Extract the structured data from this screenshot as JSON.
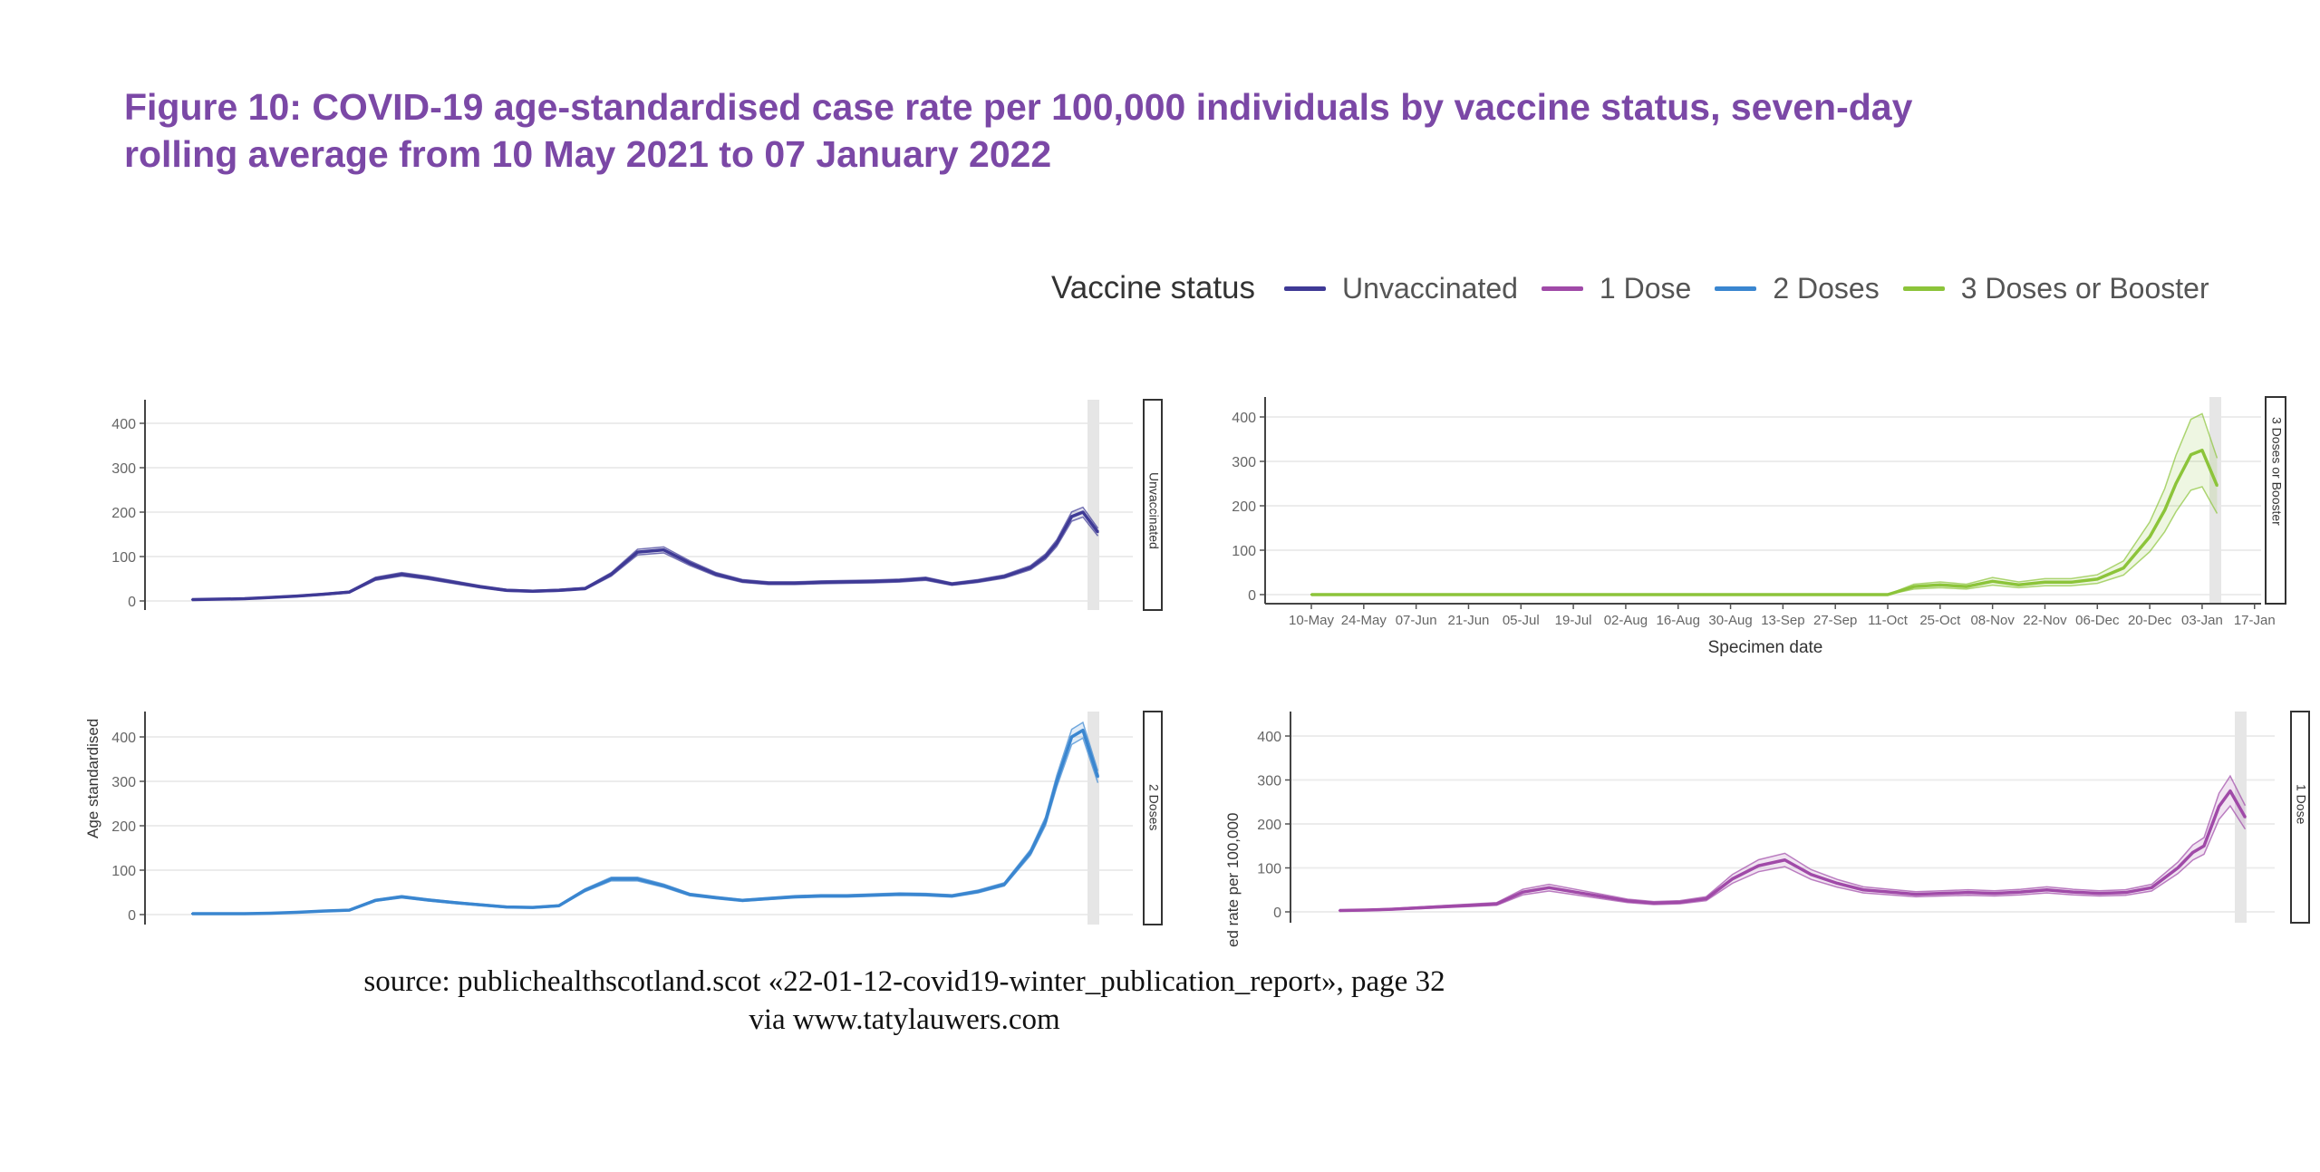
{
  "title": "Figure 10: COVID-19 age-standardised case rate per 100,000 individuals by vaccine status, seven-day rolling average from 10 May 2021 to 07 January 2022",
  "legend": {
    "title": "Vaccine status",
    "items": [
      {
        "label": "Unvaccinated",
        "color": "#3f3a96"
      },
      {
        "label": "1 Dose",
        "color": "#a04aa8"
      },
      {
        "label": "2 Doses",
        "color": "#3a86d0"
      },
      {
        "label": "3 Doses or Booster",
        "color": "#8cc43a"
      }
    ]
  },
  "source": {
    "line1": "source: publichealthscotland.scot «22-01-12-covid19-winter_publication_report», page 32",
    "line2": "via www.tatylauwers.com"
  },
  "chart_data": {
    "type": "line",
    "title": "Figure 10: COVID-19 age-standardised case rate per 100,000 individuals by vaccine status, seven-day rolling average from 10 May 2021 to 07 January 2022",
    "xlabel": "Specimen date",
    "ylabel_fragments": [
      "Age standardised",
      "ed rate per 100,000"
    ],
    "x_unit": "days since 10-May-2021",
    "x_ticks": [
      "10-May",
      "24-May",
      "07-Jun",
      "21-Jun",
      "05-Jul",
      "19-Jul",
      "02-Aug",
      "16-Aug",
      "30-Aug",
      "13-Sep",
      "27-Sep",
      "11-Oct",
      "25-Oct",
      "08-Nov",
      "22-Nov",
      "06-Dec",
      "20-Dec",
      "03-Jan",
      "17-Jan"
    ],
    "y_ticks": [
      0,
      100,
      200,
      300,
      400
    ],
    "ylim": [
      0,
      450
    ],
    "grid": true,
    "legend_position": "top-right",
    "x": [
      0,
      7,
      14,
      21,
      28,
      35,
      42,
      49,
      56,
      63,
      70,
      77,
      84,
      91,
      98,
      105,
      112,
      119,
      126,
      133,
      140,
      147,
      154,
      161,
      168,
      175,
      182,
      189,
      196,
      203,
      210,
      217,
      224,
      228,
      231,
      235,
      238,
      242
    ],
    "panels": [
      {
        "strip": "Unvaccinated",
        "series": "Unvaccinated",
        "color": "#3f3a96",
        "ci_pct": 5,
        "values": [
          3,
          4,
          5,
          8,
          11,
          15,
          20,
          50,
          60,
          52,
          42,
          32,
          24,
          22,
          24,
          28,
          60,
          110,
          115,
          85,
          60,
          45,
          40,
          40,
          42,
          43,
          44,
          46,
          50,
          38,
          45,
          55,
          75,
          100,
          130,
          190,
          200,
          155
        ]
      },
      {
        "strip": "3 Doses or Booster",
        "series": "3 Doses or Booster",
        "color": "#8cc43a",
        "ci_pct": 25,
        "values": [
          0,
          0,
          0,
          0,
          0,
          0,
          0,
          0,
          0,
          0,
          0,
          0,
          0,
          0,
          0,
          0,
          0,
          0,
          0,
          0,
          0,
          0,
          0,
          18,
          22,
          18,
          30,
          22,
          28,
          28,
          35,
          60,
          130,
          190,
          250,
          315,
          325,
          245
        ]
      },
      {
        "strip": "2 Doses",
        "series": "2 Doses",
        "color": "#3a86d0",
        "ci_pct": 4,
        "values": [
          2,
          2,
          2,
          3,
          5,
          8,
          10,
          32,
          40,
          33,
          27,
          22,
          17,
          16,
          20,
          55,
          80,
          80,
          65,
          45,
          38,
          32,
          36,
          40,
          42,
          42,
          44,
          46,
          45,
          42,
          52,
          68,
          140,
          210,
          300,
          400,
          415,
          310
        ]
      },
      {
        "strip": "1 Dose",
        "series": "1 Dose",
        "color": "#a04aa8",
        "ci_pct": 12,
        "values": [
          3,
          4,
          6,
          9,
          12,
          15,
          18,
          45,
          55,
          45,
          35,
          25,
          20,
          22,
          30,
          75,
          105,
          118,
          85,
          65,
          50,
          45,
          40,
          42,
          44,
          42,
          45,
          50,
          45,
          42,
          44,
          55,
          100,
          135,
          150,
          240,
          275,
          215
        ]
      }
    ]
  }
}
